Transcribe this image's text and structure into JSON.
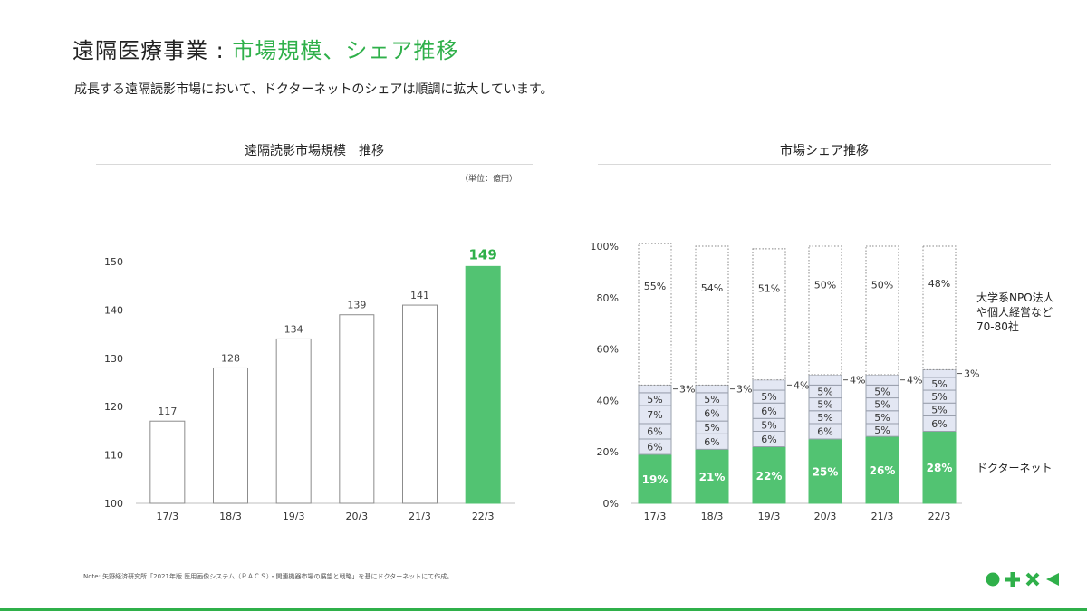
{
  "header": {
    "title_main": "遠隔医療事業 : ",
    "title_accent": "市場規模、シェア推移",
    "subtitle": "成長する遠隔読影市場において、ドクターネットのシェアは順調に拡大しています。"
  },
  "left_panel": {
    "title": "遠隔読影市場規模　推移",
    "unit": "（単位：億円）"
  },
  "right_panel": {
    "title": "市場シェア推移",
    "legend_others": [
      "大学系NPO法人",
      "や個人経営など",
      "70-80社"
    ],
    "legend_doctornet": "ドクターネット"
  },
  "footer": {
    "note": "Note: 矢野経済研究所「2021年版 医用画像システム（ＰＡＣＳ）・関連機器市場の展望と戦略」を基にドクターネットにて作成。"
  },
  "colors": {
    "accent": "#2fb04a",
    "bar_green": "#52c372",
    "segment_fill": "#e3e7f3"
  },
  "chart_data": [
    {
      "type": "bar",
      "categories": [
        "17/3",
        "18/3",
        "19/3",
        "20/3",
        "21/3",
        "22/3"
      ],
      "values": [
        117,
        128,
        134,
        139,
        141,
        149
      ],
      "yticks": [
        100,
        110,
        120,
        130,
        140,
        150
      ],
      "ylim": [
        100,
        155
      ],
      "highlight_index": 5,
      "grid": false
    },
    {
      "type": "bar",
      "stacked": true,
      "categories": [
        "17/3",
        "18/3",
        "19/3",
        "20/3",
        "21/3",
        "22/3"
      ],
      "yticks": [
        "0%",
        "20%",
        "40%",
        "60%",
        "80%",
        "100%"
      ],
      "ylim": [
        0,
        100
      ],
      "legend_position": "right",
      "series": [
        {
          "name": "ドクターネット",
          "values": [
            19,
            21,
            22,
            25,
            26,
            28
          ]
        },
        {
          "values": [
            6,
            6,
            6,
            6,
            5,
            6
          ]
        },
        {
          "values": [
            6,
            5,
            5,
            5,
            5,
            5
          ]
        },
        {
          "values": [
            7,
            6,
            6,
            5,
            5,
            5
          ]
        },
        {
          "values": [
            5,
            5,
            5,
            5,
            5,
            5
          ]
        },
        {
          "values": [
            3,
            3,
            4,
            4,
            4,
            3
          ]
        },
        {
          "name": "大学系NPO法人や個人経営など70-80社",
          "values": [
            55,
            54,
            51,
            50,
            50,
            48
          ]
        }
      ],
      "segment_labels": [
        [
          "19%",
          "6%",
          "6%",
          "7%",
          "5%",
          "3%",
          "55%"
        ],
        [
          "21%",
          "6%",
          "5%",
          "6%",
          "5%",
          "3%",
          "54%"
        ],
        [
          "22%",
          "6%",
          "5%",
          "6%",
          "5%",
          "4%",
          "51%"
        ],
        [
          "25%",
          "6%",
          "5%",
          "5%",
          "5%",
          "4%",
          "50%"
        ],
        [
          "26%",
          "5%",
          "5%",
          "5%",
          "5%",
          "4%",
          "50%"
        ],
        [
          "28%",
          "6%",
          "5%",
          "5%",
          "5%",
          "3%",
          "48%"
        ]
      ]
    }
  ]
}
